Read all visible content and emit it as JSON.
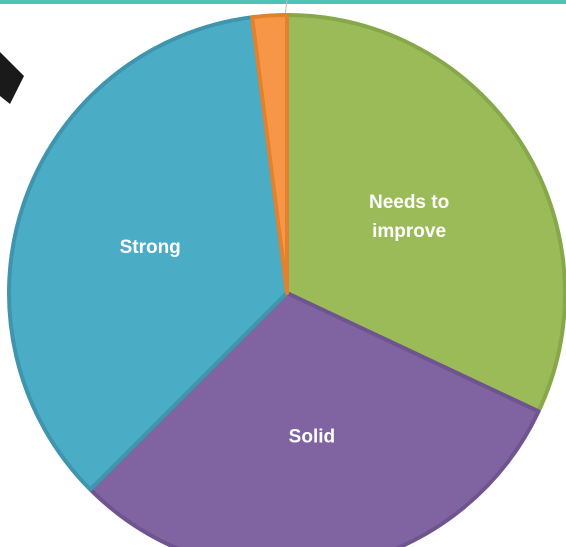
{
  "header": {
    "rule_color": "#4dc3b6"
  },
  "chart_data": {
    "type": "pie",
    "title": "",
    "start_angle_deg": 0,
    "clockwise": true,
    "slices": [
      {
        "label_lines": [
          "Needs to",
          "improve"
        ],
        "value": 32,
        "color": "#9bbb59",
        "border": "#86a84a"
      },
      {
        "label_lines": [
          "Solid"
        ],
        "value": 30.5,
        "color": "#8064a2",
        "border": "#6e5590"
      },
      {
        "label_lines": [
          "Strong"
        ],
        "value": 35.5,
        "color": "#4bacc6",
        "border": "#3f95ad"
      },
      {
        "label_lines": [
          ""
        ],
        "value": 2,
        "color": "#f79646",
        "border": "#e2822f"
      }
    ]
  },
  "decoration": {
    "arrow_color": "#1a1a1a",
    "arrow_line_color": "#bbbbbb"
  }
}
